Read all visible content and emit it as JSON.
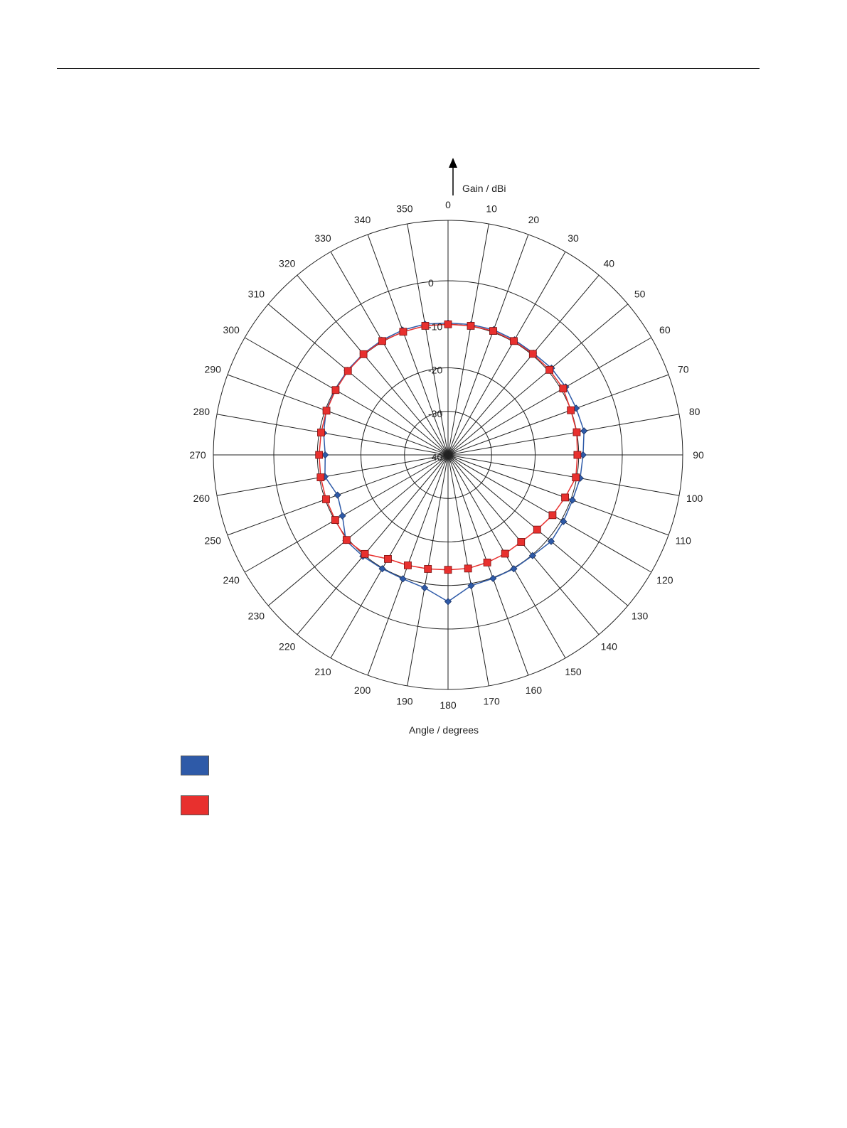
{
  "chart_data": {
    "type": "polar-line",
    "title": "",
    "radial_axis_label": "Gain / dBi",
    "angular_axis_label": "Angle / degrees",
    "radial_range": [
      -40,
      0
    ],
    "radial_ticks": [
      0,
      -10,
      -20,
      -30,
      -40
    ],
    "radial_tick_labels": [
      "0",
      "-10",
      "-20",
      "-30",
      "-40"
    ],
    "angular_ticks": [
      0,
      10,
      20,
      30,
      40,
      50,
      60,
      70,
      80,
      90,
      100,
      110,
      120,
      130,
      140,
      150,
      160,
      170,
      180,
      190,
      200,
      210,
      220,
      230,
      240,
      250,
      260,
      270,
      280,
      290,
      300,
      310,
      320,
      330,
      340,
      350
    ],
    "angular_tick_labels": [
      "0",
      "10",
      "20",
      "30",
      "40",
      "50",
      "60",
      "70",
      "80",
      "90",
      "100",
      "110",
      "120",
      "130",
      "140",
      "150",
      "160",
      "170",
      "180",
      "190",
      "200",
      "210",
      "220",
      "230",
      "240",
      "250",
      "260",
      "270",
      "280",
      "290",
      "300",
      "310",
      "320",
      "330",
      "340",
      "350"
    ],
    "grid": true,
    "series": [
      {
        "color": "#2e5aa8",
        "marker": "diamond",
        "angles": [
          0,
          10,
          20,
          30,
          40,
          50,
          60,
          70,
          80,
          90,
          100,
          110,
          120,
          130,
          140,
          150,
          160,
          170,
          180,
          190,
          200,
          210,
          220,
          230,
          240,
          250,
          260,
          270,
          280,
          290,
          300,
          310,
          320,
          330,
          340,
          350
        ],
        "values": [
          -9.7,
          -9.6,
          -9.4,
          -9.5,
          -9.5,
          -9.0,
          -8.8,
          -8.7,
          -8.3,
          -9.0,
          -9.2,
          -9.6,
          -9.4,
          -9.1,
          -9.8,
          -9.8,
          -9.8,
          -9.5,
          -6.3,
          -9.0,
          -9.7,
          -9.8,
          -9.6,
          -9.4,
          -12.0,
          -13.0,
          -11.3,
          -11.8,
          -11.0,
          -10.2,
          -10.1,
          -9.8,
          -9.7,
          -9.6,
          -9.5,
          -9.5
        ]
      },
      {
        "color": "#e8302e",
        "marker": "square",
        "angles": [
          0,
          10,
          20,
          30,
          40,
          50,
          60,
          70,
          80,
          90,
          100,
          110,
          120,
          130,
          140,
          150,
          160,
          170,
          180,
          190,
          200,
          210,
          220,
          230,
          240,
          250,
          260,
          270,
          280,
          290,
          300,
          310,
          320,
          330,
          340,
          350
        ],
        "values": [
          -10.0,
          -9.9,
          -9.7,
          -9.8,
          -9.7,
          -9.6,
          -9.5,
          -10.0,
          -10.0,
          -10.3,
          -10.2,
          -11.4,
          -12.3,
          -13.3,
          -13.9,
          -13.8,
          -13.7,
          -13.5,
          -13.6,
          -13.4,
          -13.0,
          -12.4,
          -10.3,
          -9.6,
          -10.1,
          -10.2,
          -10.3,
          -10.4,
          -10.4,
          -10.3,
          -10.2,
          -10.0,
          -9.8,
          -9.8,
          -9.9,
          -9.9
        ]
      }
    ]
  }
}
